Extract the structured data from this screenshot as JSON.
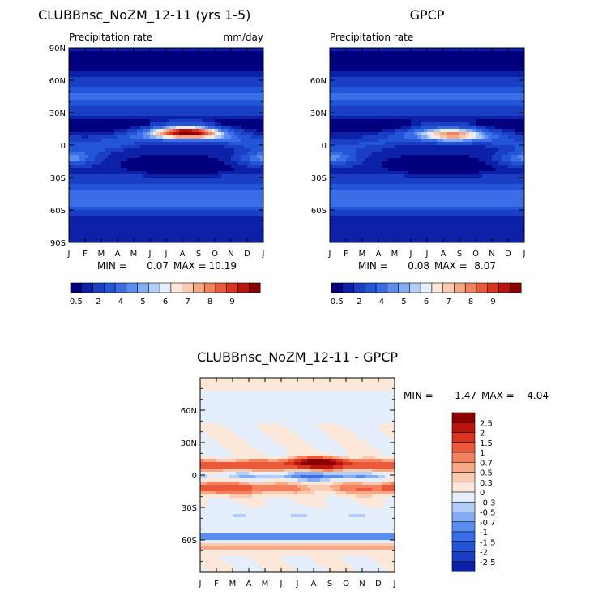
{
  "chart_data": [
    {
      "type": "heatmap",
      "title": "CLUBBnsc_NoZM_12-11 (yrs 1-5)",
      "subtitle_left": "Precipitation rate",
      "subtitle_right": "mm/day",
      "x_ticks": [
        "J",
        "F",
        "M",
        "A",
        "M",
        "J",
        "J",
        "A",
        "S",
        "O",
        "N",
        "D",
        "J"
      ],
      "y_ticks": [
        "90N",
        "60N",
        "30N",
        "0",
        "30S",
        "60S",
        "90S"
      ],
      "ylim": [
        -90,
        90
      ],
      "stats": {
        "min_label": "MIN =",
        "min": "0.07",
        "max_label": "MAX =",
        "max": "10.19"
      },
      "colorbar_labels": [
        "0.5",
        "2",
        "4",
        "5",
        "6",
        "7",
        "8",
        "9"
      ],
      "peak": {
        "value": 10.2,
        "lat": 11,
        "month": 7.3
      }
    },
    {
      "type": "heatmap",
      "title": "GPCP",
      "subtitle_left": "Precipitation rate",
      "subtitle_right": "",
      "x_ticks": [
        "J",
        "F",
        "M",
        "A",
        "M",
        "J",
        "J",
        "A",
        "S",
        "O",
        "N",
        "D",
        "J"
      ],
      "y_ticks": [
        "60N",
        "30N",
        "0",
        "30S",
        "60S"
      ],
      "ylim": [
        -90,
        90
      ],
      "stats": {
        "min_label": "MIN =",
        "min": "0.08",
        "max_label": "MAX =",
        "max": "8.07"
      },
      "colorbar_labels": [
        "0.5",
        "2",
        "4",
        "5",
        "6",
        "7",
        "8",
        "9"
      ],
      "peak": {
        "value": 8.1,
        "lat": 9,
        "month": 7.5
      }
    },
    {
      "type": "heatmap",
      "title": "CLUBBnsc_NoZM_12-11 - GPCP",
      "x_ticks": [
        "J",
        "F",
        "M",
        "A",
        "M",
        "J",
        "J",
        "A",
        "S",
        "O",
        "N",
        "D",
        "J"
      ],
      "y_ticks": [
        "60N",
        "30N",
        "0",
        "30S",
        "60S"
      ],
      "ylim": [
        -90,
        90
      ],
      "stats": {
        "min_label": "MIN =",
        "min": "-1.47",
        "max_label": "MAX =",
        "max": "4.04"
      },
      "colorbar_labels": [
        "2.5",
        "2",
        "1.5",
        "1",
        "0.7",
        "0.5",
        "0.3",
        "0",
        "-0.3",
        "-0.5",
        "-0.7",
        "-1",
        "-1.5",
        "-2",
        "-2.5"
      ]
    }
  ],
  "colors": {
    "precip_scale": [
      "#00007f",
      "#0c21a8",
      "#1a3fc4",
      "#2255d8",
      "#3b6ee6",
      "#5b8cef",
      "#86acf5",
      "#b3cdfa",
      "#e4eefc",
      "#fde7d8",
      "#fbcab0",
      "#f7a886",
      "#f4815e",
      "#ea5a3a",
      "#d8341f",
      "#b9140e",
      "#8c0000"
    ],
    "diff_scale": [
      "#8c0000",
      "#b9140e",
      "#d8341f",
      "#ea5a3a",
      "#f4815e",
      "#f7a886",
      "#fbcab0",
      "#fde7d8",
      "#e4eefc",
      "#b3cdfa",
      "#86acf5",
      "#5b8cef",
      "#3b6ee6",
      "#2255d8",
      "#1a3fc4",
      "#0c21a8"
    ]
  }
}
